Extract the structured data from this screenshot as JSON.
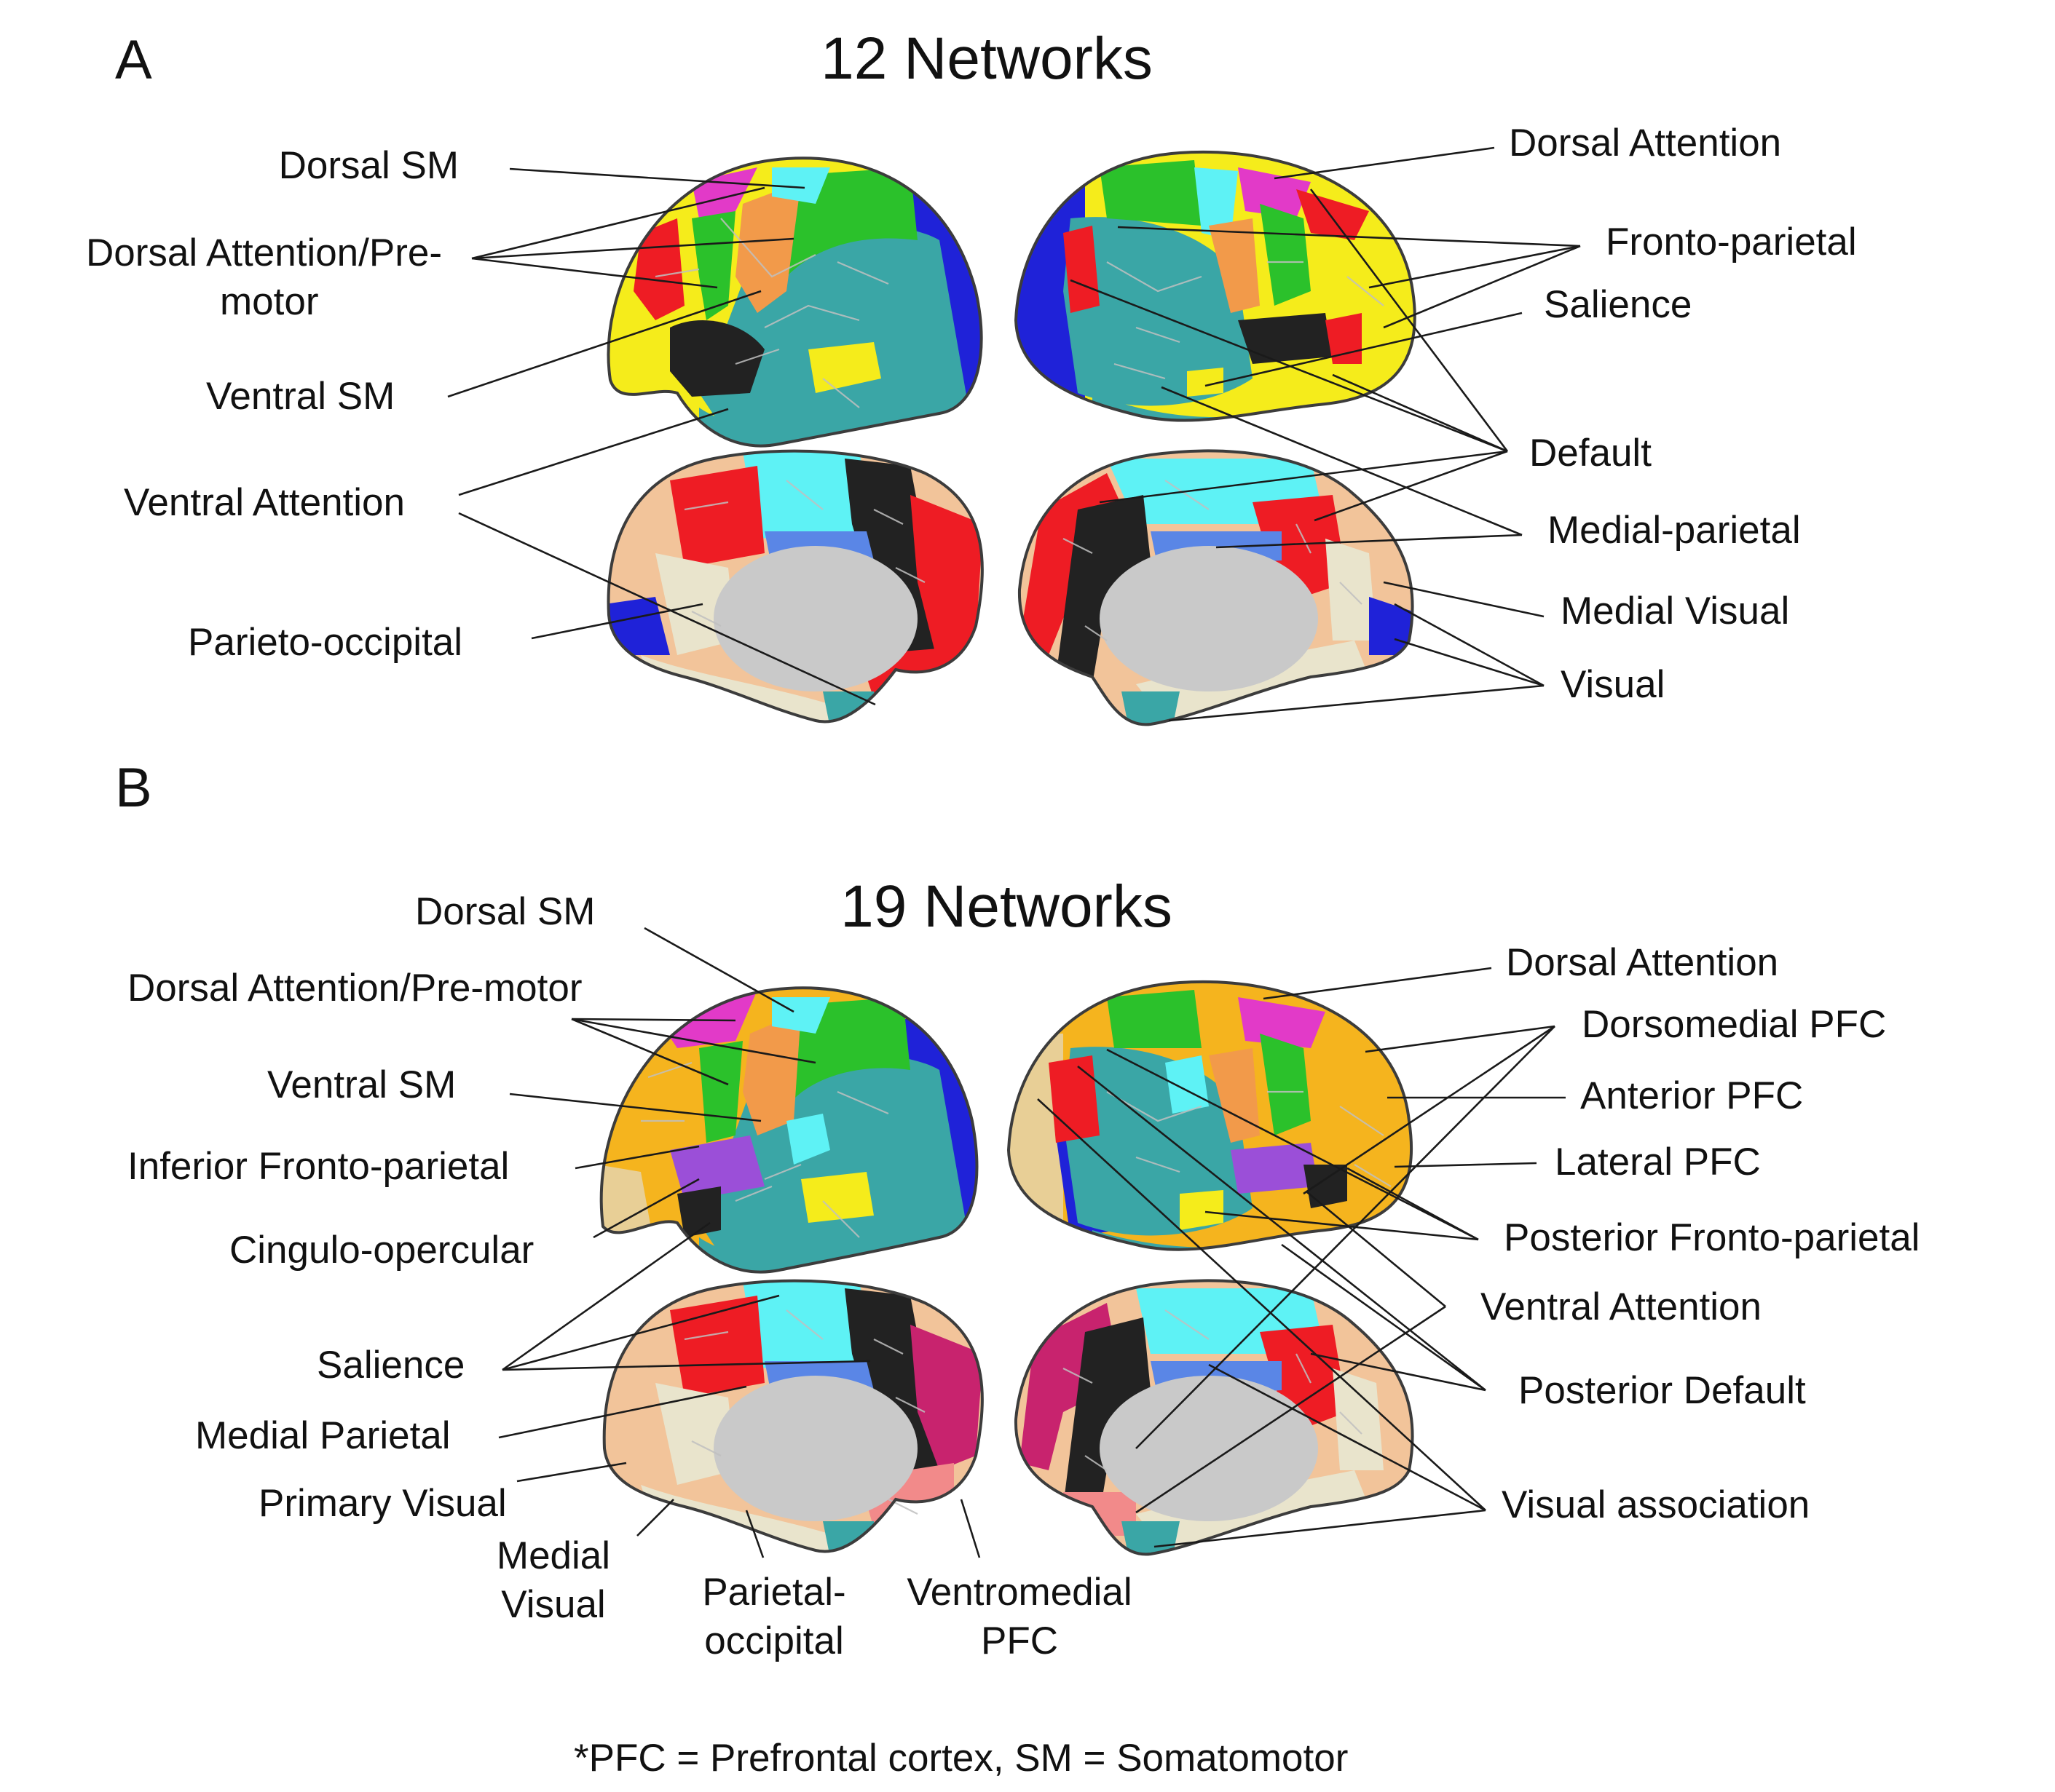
{
  "panel_a": {
    "letter": "A",
    "title": "12 Networks",
    "labels": {
      "dorsal_sm": "Dorsal SM",
      "dorsal_attention_premotor_1": "Dorsal Attention/Pre-",
      "dorsal_attention_premotor_2": "motor",
      "ventral_sm": "Ventral SM",
      "ventral_attention": "Ventral Attention",
      "parieto_occipital": "Parieto-occipital",
      "dorsal_attention": "Dorsal Attention",
      "fronto_parietal": "Fronto-parietal",
      "salience": "Salience",
      "default": "Default",
      "medial_parietal": "Medial-parietal",
      "medial_visual": "Medial Visual",
      "visual": "Visual"
    }
  },
  "panel_b": {
    "letter": "B",
    "title": "19 Networks",
    "labels": {
      "dorsal_sm": "Dorsal SM",
      "dorsal_attention_premotor": "Dorsal Attention/Pre-motor",
      "ventral_sm": "Ventral SM",
      "inferior_fronto_parietal": "Inferior Fronto-parietal",
      "cingulo_opercular": "Cingulo-opercular",
      "salience": "Salience",
      "medial_parietal": "Medial Parietal",
      "primary_visual": "Primary Visual",
      "medial_visual_1": "Medial",
      "medial_visual_2": "Visual",
      "parietal_occipital_1": "Parietal-",
      "parietal_occipital_2": "occipital",
      "ventromedial_pfc_1": "Ventromedial",
      "ventromedial_pfc_2": "PFC",
      "dorsal_attention": "Dorsal Attention",
      "dorsomedial_pfc": "Dorsomedial PFC",
      "anterior_pfc": "Anterior PFC",
      "lateral_pfc": "Lateral PFC",
      "posterior_fronto_parietal": "Posterior Fronto-parietal",
      "ventral_attention": "Ventral Attention",
      "posterior_default": "Posterior Default",
      "visual_association": "Visual association"
    }
  },
  "footnote": "*PFC = Prefrontal cortex, SM = Somatomotor",
  "colors": {
    "red": "#ee1c24",
    "blue": "#1f22d8",
    "teal": "#3aa6a6",
    "cyan": "#5ef2f5",
    "yellow": "#f5ec1b",
    "orange": "#f29a4a",
    "green": "#2bc12b",
    "black": "#222222",
    "magenta": "#e23ac8",
    "tan": "#f2c49a",
    "cream": "#e9e4cc",
    "purple": "#9b4fd8",
    "gold": "#f5b41e",
    "cornflower": "#5a86e6",
    "pink": "#f28a8a",
    "crimson": "#c8236e",
    "wheat": "#e8cf96",
    "gray": "#c9c9c9"
  }
}
